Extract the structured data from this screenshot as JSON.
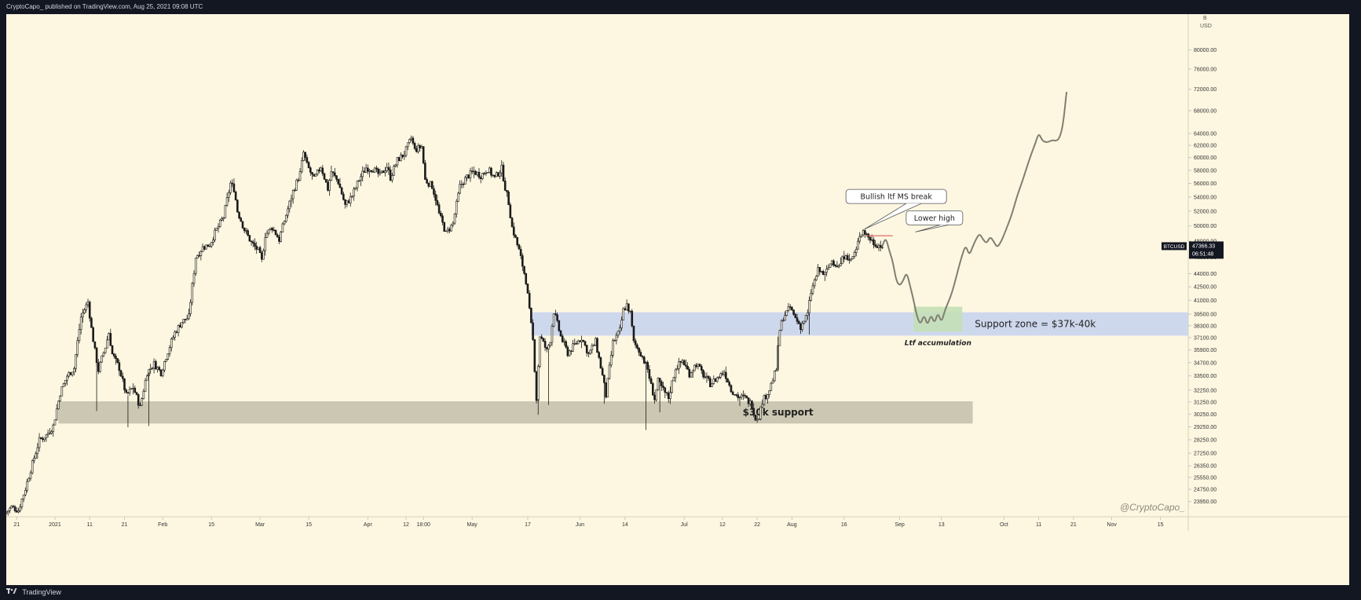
{
  "header": {
    "publisher_line": "CryptoCapo_ published on TradingView.com, Aug 25, 2021 09:08 UTC"
  },
  "footer": {
    "brand": "TradingView"
  },
  "watermark": "@CryptoCapo_",
  "chart_data": {
    "type": "candlestick",
    "symbol": "BTCUSD",
    "price_tag": "47366.33",
    "countdown": "06:51:48",
    "top_right_labels": [
      "B",
      "USD"
    ],
    "y_scale": "log",
    "ylim": [
      23000,
      88000
    ],
    "y_ticks": [
      "80000.00",
      "76000.00",
      "72000.00",
      "68000.00",
      "64000.00",
      "62000.00",
      "60000.00",
      "58000.00",
      "56000.00",
      "54000.00",
      "52000.00",
      "50000.00",
      "48000.00",
      "46000.00",
      "44000.00",
      "42500.00",
      "41000.00",
      "39500.00",
      "38300.00",
      "37100.00",
      "35900.00",
      "34700.00",
      "33500.00",
      "32250.00",
      "31250.00",
      "30250.00",
      "29250.00",
      "28250.00",
      "27250.00",
      "26350.00",
      "25550.00",
      "24750.00",
      "23950.00"
    ],
    "x_ticks": [
      {
        "label": "21",
        "day": -11
      },
      {
        "label": "2021",
        "day": 0
      },
      {
        "label": "11",
        "day": 10
      },
      {
        "label": "21",
        "day": 20
      },
      {
        "label": "Feb",
        "day": 31
      },
      {
        "label": "15",
        "day": 45
      },
      {
        "label": "Mar",
        "day": 59
      },
      {
        "label": "15",
        "day": 73
      },
      {
        "label": "Apr",
        "day": 90
      },
      {
        "label": "12",
        "day": 101
      },
      {
        "label": "18:00",
        "day": 106
      },
      {
        "label": "May",
        "day": 120
      },
      {
        "label": "17",
        "day": 136
      },
      {
        "label": "Jun",
        "day": 151
      },
      {
        "label": "14",
        "day": 164
      },
      {
        "label": "Jul",
        "day": 181
      },
      {
        "label": "12",
        "day": 192
      },
      {
        "label": "22",
        "day": 202
      },
      {
        "label": "Aug",
        "day": 212
      },
      {
        "label": "16",
        "day": 227
      },
      {
        "label": "Sep",
        "day": 243
      },
      {
        "label": "13",
        "day": 255
      },
      {
        "label": "Oct",
        "day": 273
      },
      {
        "label": "11",
        "day": 283
      },
      {
        "label": "21",
        "day": 293
      },
      {
        "label": "Nov",
        "day": 304
      },
      {
        "label": "15",
        "day": 318
      }
    ],
    "x_start_day": -14,
    "x_end_day": 326,
    "price_path": [
      [
        -14,
        23200
      ],
      [
        -12,
        23600
      ],
      [
        -10,
        23400
      ],
      [
        -8,
        24800
      ],
      [
        -6,
        26500
      ],
      [
        -4,
        28200
      ],
      [
        -2,
        28600
      ],
      [
        0,
        29300
      ],
      [
        2,
        32000
      ],
      [
        4,
        33500
      ],
      [
        6,
        34200
      ],
      [
        8,
        39200
      ],
      [
        10,
        40800
      ],
      [
        11,
        38000
      ],
      [
        12,
        35800
      ],
      [
        13,
        34000
      ],
      [
        15,
        36200
      ],
      [
        16,
        37600
      ],
      [
        17,
        35500
      ],
      [
        19,
        34200
      ],
      [
        21,
        31800
      ],
      [
        23,
        32500
      ],
      [
        25,
        30800
      ],
      [
        27,
        33800
      ],
      [
        29,
        34600
      ],
      [
        31,
        33800
      ],
      [
        33,
        35800
      ],
      [
        35,
        37600
      ],
      [
        37,
        38700
      ],
      [
        39,
        39200
      ],
      [
        41,
        46000
      ],
      [
        43,
        47200
      ],
      [
        45,
        47600
      ],
      [
        47,
        49500
      ],
      [
        49,
        51200
      ],
      [
        51,
        56000
      ],
      [
        52,
        55200
      ],
      [
        53,
        52000
      ],
      [
        55,
        49500
      ],
      [
        57,
        47800
      ],
      [
        59,
        46800
      ],
      [
        60,
        45500
      ],
      [
        61,
        48800
      ],
      [
        63,
        49800
      ],
      [
        65,
        48200
      ],
      [
        67,
        51500
      ],
      [
        69,
        54800
      ],
      [
        71,
        57500
      ],
      [
        72,
        60800
      ],
      [
        73,
        58800
      ],
      [
        75,
        56600
      ],
      [
        77,
        58600
      ],
      [
        79,
        55200
      ],
      [
        80,
        57800
      ],
      [
        82,
        56200
      ],
      [
        84,
        52800
      ],
      [
        86,
        54200
      ],
      [
        88,
        56600
      ],
      [
        90,
        58400
      ],
      [
        92,
        58200
      ],
      [
        94,
        57200
      ],
      [
        96,
        58600
      ],
      [
        97,
        56900
      ],
      [
        99,
        59600
      ],
      [
        101,
        60600
      ],
      [
        103,
        63200
      ],
      [
        104,
        61200
      ],
      [
        106,
        61800
      ],
      [
        107,
        56500
      ],
      [
        109,
        55600
      ],
      [
        110,
        53800
      ],
      [
        111,
        51600
      ],
      [
        113,
        49000
      ],
      [
        115,
        50300
      ],
      [
        117,
        55600
      ],
      [
        119,
        57000
      ],
      [
        121,
        57800
      ],
      [
        123,
        57200
      ],
      [
        125,
        58200
      ],
      [
        127,
        56800
      ],
      [
        129,
        58300
      ],
      [
        130,
        55400
      ],
      [
        131,
        53200
      ],
      [
        132,
        49800
      ],
      [
        134,
        46800
      ],
      [
        136,
        43200
      ],
      [
        137,
        39800
      ],
      [
        138,
        36800
      ],
      [
        139,
        31500
      ],
      [
        140,
        37300
      ],
      [
        142,
        35800
      ],
      [
        143,
        36900
      ],
      [
        144,
        39800
      ],
      [
        146,
        37200
      ],
      [
        148,
        35600
      ],
      [
        150,
        36400
      ],
      [
        152,
        37100
      ],
      [
        154,
        35500
      ],
      [
        156,
        36700
      ],
      [
        158,
        33500
      ],
      [
        159,
        31800
      ],
      [
        161,
        36600
      ],
      [
        163,
        37800
      ],
      [
        164,
        39900
      ],
      [
        165,
        40500
      ],
      [
        166,
        39600
      ],
      [
        167,
        36600
      ],
      [
        169,
        35600
      ],
      [
        171,
        34100
      ],
      [
        172,
        32600
      ],
      [
        173,
        31500
      ],
      [
        174,
        33000
      ],
      [
        176,
        32000
      ],
      [
        177,
        31600
      ],
      [
        179,
        34200
      ],
      [
        181,
        34900
      ],
      [
        183,
        33700
      ],
      [
        185,
        34600
      ],
      [
        187,
        33600
      ],
      [
        189,
        32800
      ],
      [
        191,
        33300
      ],
      [
        193,
        33900
      ],
      [
        195,
        32300
      ],
      [
        197,
        31700
      ],
      [
        199,
        31600
      ],
      [
        201,
        31000
      ],
      [
        202,
        29900
      ],
      [
        203,
        30100
      ],
      [
        204,
        31300
      ],
      [
        206,
        32300
      ],
      [
        208,
        34100
      ],
      [
        209,
        37900
      ],
      [
        210,
        39200
      ],
      [
        212,
        40200
      ],
      [
        213,
        39400
      ],
      [
        215,
        38200
      ],
      [
        217,
        39500
      ],
      [
        218,
        41900
      ],
      [
        220,
        44400
      ],
      [
        222,
        43900
      ],
      [
        224,
        45600
      ],
      [
        226,
        44800
      ],
      [
        228,
        46600
      ],
      [
        229,
        45400
      ],
      [
        231,
        46800
      ],
      [
        232,
        48800
      ],
      [
        233,
        49400
      ],
      [
        235,
        48300
      ],
      [
        236,
        47800
      ],
      [
        238,
        47366
      ]
    ],
    "projection_path": [
      [
        238,
        47366
      ],
      [
        239,
        48500
      ],
      [
        240,
        46800
      ],
      [
        241,
        45500
      ],
      [
        242,
        43200
      ],
      [
        243,
        42600
      ],
      [
        244,
        43200
      ],
      [
        245,
        44200
      ],
      [
        246,
        42600
      ],
      [
        247,
        41000
      ],
      [
        248,
        39200
      ],
      [
        249,
        38400
      ],
      [
        250,
        39500
      ],
      [
        251,
        38300
      ],
      [
        252,
        39500
      ],
      [
        253,
        38500
      ],
      [
        254,
        39700
      ],
      [
        255,
        38600
      ],
      [
        256,
        39900
      ],
      [
        257,
        40800
      ],
      [
        258,
        41800
      ],
      [
        259,
        43200
      ],
      [
        260,
        44800
      ],
      [
        261,
        46300
      ],
      [
        262,
        47500
      ],
      [
        263,
        46200
      ],
      [
        264,
        47300
      ],
      [
        265,
        48300
      ],
      [
        266,
        49000
      ],
      [
        267,
        48200
      ],
      [
        268,
        47700
      ],
      [
        269,
        48600
      ],
      [
        270,
        48000
      ],
      [
        271,
        47200
      ],
      [
        272,
        47800
      ],
      [
        273,
        48800
      ],
      [
        274,
        50000
      ],
      [
        275,
        51200
      ],
      [
        276,
        52800
      ],
      [
        277,
        54500
      ],
      [
        278,
        55900
      ],
      [
        279,
        57500
      ],
      [
        280,
        59200
      ],
      [
        281,
        60800
      ],
      [
        282,
        62300
      ],
      [
        283,
        64100
      ],
      [
        284,
        62800
      ],
      [
        285,
        62500
      ],
      [
        286,
        62600
      ],
      [
        287,
        62900
      ],
      [
        288,
        62700
      ],
      [
        289,
        63200
      ],
      [
        290,
        65500
      ],
      [
        291,
        71500
      ]
    ],
    "zones": [
      {
        "label": "Support zone = $37k-40k",
        "from_day": 137,
        "to_day": 326,
        "low": 37300,
        "high": 39700,
        "color": "#c9d4ee"
      },
      {
        "label": "$30k support",
        "from_day": 1,
        "to_day": 264,
        "low": 29500,
        "high": 31300,
        "color": "#c7c1ad"
      },
      {
        "label": "Ltf accumulation",
        "from_day": 247,
        "to_day": 261,
        "low": 37700,
        "high": 40300,
        "color": "#c4dfb6"
      }
    ],
    "annotations": [
      {
        "text": "Bullish ltf MS break",
        "day": 242,
        "price": 52200
      },
      {
        "text": "Lower high",
        "day": 253,
        "price": 49300
      }
    ]
  }
}
